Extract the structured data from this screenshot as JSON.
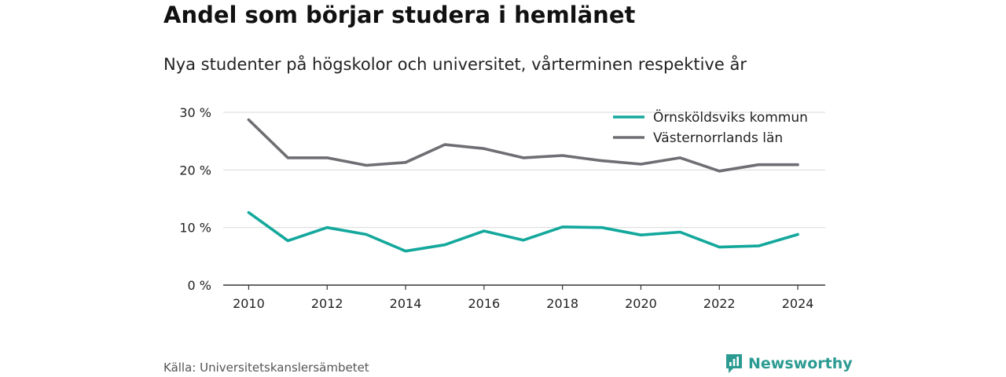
{
  "header": {
    "title": "Andel som börjar studera i hemlänet",
    "subtitle": "Nya studenter på högskolor och universitet, vårterminen respektive år"
  },
  "footer": {
    "source": "Källa: Universitetskanslersämbetet",
    "brand": "Newsworthy"
  },
  "colors": {
    "series_1": "#14a89c",
    "series_2": "#6e6e73",
    "grid": "#d9d9d9",
    "axis": "#333333",
    "brand": "#2b9b92"
  },
  "icons": {
    "brand": "bar-chart-speech-icon"
  },
  "chart_data": {
    "type": "line",
    "title": "Andel som börjar studera i hemlänet",
    "subtitle": "Nya studenter på högskolor och universitet, vårterminen respektive år",
    "xlabel": "",
    "ylabel": "",
    "x": [
      2010,
      2011,
      2012,
      2013,
      2014,
      2015,
      2016,
      2017,
      2018,
      2019,
      2020,
      2021,
      2022,
      2023,
      2024
    ],
    "x_ticks": [
      "2010",
      "2012",
      "2014",
      "2016",
      "2018",
      "2020",
      "2022",
      "2024"
    ],
    "xlim": [
      2009.35,
      2024.7
    ],
    "ylim": [
      0,
      30
    ],
    "y_ticks": [
      0,
      10,
      20,
      30
    ],
    "y_tick_labels": [
      "0 %",
      "10 %",
      "20 %",
      "30 %"
    ],
    "grid": true,
    "legend": "top-right",
    "series": [
      {
        "name": "Örnsköldsviks kommun",
        "color": "#14a89c",
        "values": [
          12.6,
          7.7,
          10.0,
          8.8,
          5.9,
          7.0,
          9.4,
          7.8,
          10.1,
          10.0,
          8.7,
          9.2,
          6.6,
          6.8,
          8.8
        ]
      },
      {
        "name": "Västernorrlands län",
        "color": "#6e6e73",
        "values": [
          28.7,
          22.1,
          22.1,
          20.8,
          21.3,
          24.4,
          23.7,
          22.1,
          22.5,
          21.6,
          21.0,
          22.1,
          19.8,
          20.9,
          20.9
        ]
      }
    ]
  }
}
